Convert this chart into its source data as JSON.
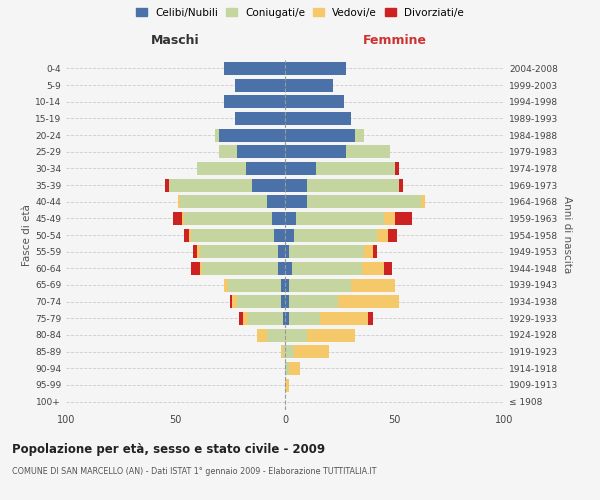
{
  "age_groups": [
    "100+",
    "95-99",
    "90-94",
    "85-89",
    "80-84",
    "75-79",
    "70-74",
    "65-69",
    "60-64",
    "55-59",
    "50-54",
    "45-49",
    "40-44",
    "35-39",
    "30-34",
    "25-29",
    "20-24",
    "15-19",
    "10-14",
    "5-9",
    "0-4"
  ],
  "birth_years": [
    "≤ 1908",
    "1909-1913",
    "1914-1918",
    "1919-1923",
    "1924-1928",
    "1929-1933",
    "1934-1938",
    "1939-1943",
    "1944-1948",
    "1949-1953",
    "1954-1958",
    "1959-1963",
    "1964-1968",
    "1969-1973",
    "1974-1978",
    "1979-1983",
    "1984-1988",
    "1989-1993",
    "1994-1998",
    "1999-2003",
    "2004-2008"
  ],
  "colors": {
    "celibi": "#4a72a8",
    "coniugati": "#c5d5a0",
    "vedovi": "#f5c96a",
    "divorziati": "#cc2222"
  },
  "males": {
    "celibi": [
      0,
      0,
      0,
      0,
      0,
      1,
      2,
      2,
      3,
      3,
      5,
      6,
      8,
      15,
      18,
      22,
      30,
      23,
      28,
      23,
      28
    ],
    "coniugati": [
      0,
      0,
      0,
      1,
      8,
      16,
      20,
      24,
      35,
      36,
      38,
      40,
      40,
      38,
      22,
      8,
      2,
      0,
      0,
      0,
      0
    ],
    "vedovi": [
      0,
      0,
      0,
      1,
      5,
      2,
      2,
      2,
      1,
      1,
      1,
      1,
      1,
      0,
      0,
      0,
      0,
      0,
      0,
      0,
      0
    ],
    "divorziati": [
      0,
      0,
      0,
      0,
      0,
      2,
      1,
      0,
      4,
      2,
      2,
      4,
      0,
      2,
      0,
      0,
      0,
      0,
      0,
      0,
      0
    ]
  },
  "females": {
    "nubili": [
      0,
      0,
      0,
      0,
      0,
      2,
      2,
      2,
      3,
      2,
      4,
      5,
      10,
      10,
      14,
      28,
      32,
      30,
      27,
      22,
      28
    ],
    "coniugate": [
      0,
      0,
      2,
      4,
      10,
      14,
      22,
      28,
      32,
      34,
      38,
      40,
      52,
      42,
      36,
      20,
      4,
      0,
      0,
      0,
      0
    ],
    "vedove": [
      0,
      2,
      5,
      16,
      22,
      22,
      28,
      20,
      10,
      4,
      5,
      5,
      2,
      0,
      0,
      0,
      0,
      0,
      0,
      0,
      0
    ],
    "divorziate": [
      0,
      0,
      0,
      0,
      0,
      2,
      0,
      0,
      4,
      2,
      4,
      8,
      0,
      2,
      2,
      0,
      0,
      0,
      0,
      0,
      0
    ]
  },
  "xlim": 100,
  "title": "Popolazione per età, sesso e stato civile - 2009",
  "subtitle": "COMUNE DI SAN MARCELLO (AN) - Dati ISTAT 1° gennaio 2009 - Elaborazione TUTTITALIA.IT",
  "maschi_label": "Maschi",
  "femmine_label": "Femmine",
  "ylabel_left": "Fasce di età",
  "ylabel_right": "Anni di nascita",
  "legend_labels": [
    "Celibi/Nubili",
    "Coniugati/e",
    "Vedovi/e",
    "Divorziati/e"
  ],
  "bg_color": "#f5f5f5",
  "plot_bg": "#f5f5f5"
}
